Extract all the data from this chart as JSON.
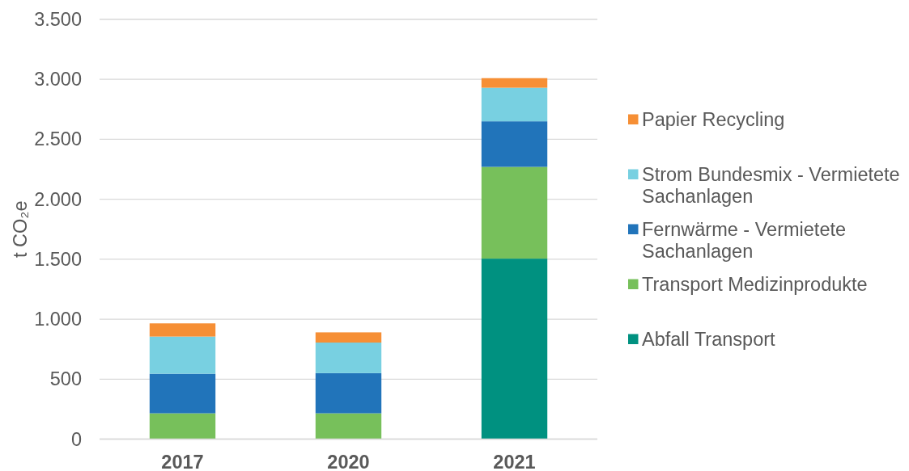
{
  "chart_data": {
    "type": "bar",
    "stacked": true,
    "ylabel": "t CO₂e",
    "categories": [
      "2017",
      "2020",
      "2021"
    ],
    "series": [
      {
        "name": "Abfall Transport",
        "color": "#009180",
        "values": [
          0,
          0,
          1505
        ]
      },
      {
        "name": "Transport Medizinprodukte",
        "color": "#77c05b",
        "values": [
          215,
          215,
          765
        ]
      },
      {
        "name": "Fernwärme - Vermietete Sachanlagen",
        "color": "#2174ba",
        "values": [
          330,
          335,
          380
        ]
      },
      {
        "name": "Strom Bundesmix - Vermietete Sachanlagen",
        "color": "#78d0e1",
        "values": [
          310,
          255,
          280
        ]
      },
      {
        "name": "Papier Recycling",
        "color": "#f68f35",
        "values": [
          110,
          85,
          80
        ]
      }
    ],
    "ylim": [
      0,
      3500
    ],
    "yticks": [
      0,
      500,
      {
        "value": 1000,
        "label": "1.000"
      },
      {
        "value": 1500,
        "label": "1.500"
      },
      {
        "value": 2000,
        "label": "2.000"
      },
      {
        "value": 2500,
        "label": "2.500"
      },
      {
        "value": 3000,
        "label": "3.000"
      },
      {
        "value": 3500,
        "label": "3.500"
      }
    ],
    "grid": "y",
    "legend": "right"
  }
}
